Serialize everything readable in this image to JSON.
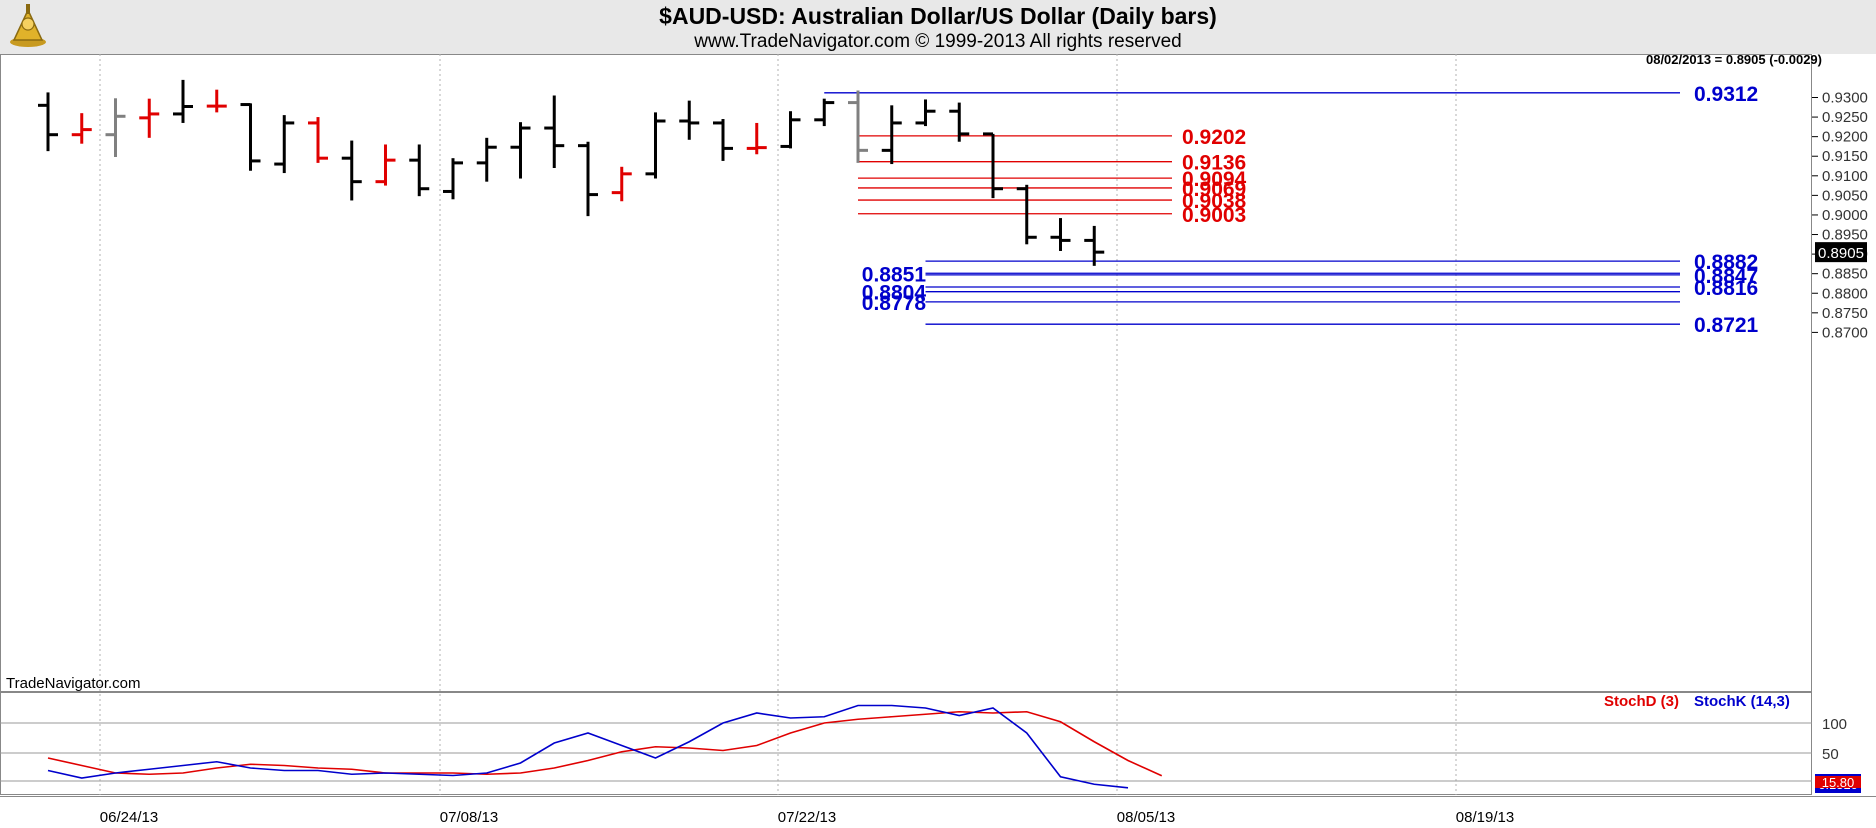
{
  "header": {
    "title": "$AUD-USD:  Australian Dollar/US Dollar  (Daily bars)",
    "copyright": "www.TradeNavigator.com © 1999-2013 All rights reserved"
  },
  "watermark": "TradeNavigator.com",
  "readout": "08/02/2013 = 0.8905 (-0.0029)",
  "last_price_tag": "0.8905",
  "indicator_legend": {
    "stoch_d": "StochD (3)",
    "stoch_k": "StochK (14,3)"
  },
  "indicator_last": {
    "stoch_d": "15.80",
    "stoch_k": "6.1310"
  },
  "colors": {
    "up": "#000000",
    "down": "#e00000",
    "neutral": "#808080",
    "support": "#0000cc",
    "resistance": "#e00000",
    "grid": "#b0b0b0"
  },
  "chart_data": [
    {
      "type": "ohlc",
      "title": "$AUD-USD:  Australian Dollar/US Dollar  (Daily bars)",
      "x_ticks": [
        "06/24/13",
        "07/08/13",
        "07/22/13",
        "08/05/13",
        "08/19/13"
      ],
      "y_ticks": [
        "0.9300",
        "0.9250",
        "0.9200",
        "0.9150",
        "0.9100",
        "0.9050",
        "0.9000",
        "0.8950",
        "0.8900",
        "0.8850",
        "0.8800",
        "0.8750",
        "0.8700"
      ],
      "ylim": [
        0.869,
        0.9335
      ],
      "grid": true,
      "bars": [
        {
          "slot": 0,
          "o": 0.928,
          "h": 0.9313,
          "l": 0.9163,
          "c": 0.9205,
          "color": "up"
        },
        {
          "slot": 1,
          "o": 0.9205,
          "h": 0.926,
          "l": 0.9182,
          "c": 0.9218,
          "color": "down"
        },
        {
          "slot": 2,
          "o": 0.9205,
          "h": 0.9298,
          "l": 0.9148,
          "c": 0.9252,
          "color": "neutral"
        },
        {
          "slot": 3,
          "o": 0.9248,
          "h": 0.9297,
          "l": 0.9197,
          "c": 0.9258,
          "color": "down"
        },
        {
          "slot": 4,
          "o": 0.9258,
          "h": 0.9345,
          "l": 0.9235,
          "c": 0.9277,
          "color": "up"
        },
        {
          "slot": 5,
          "o": 0.9278,
          "h": 0.932,
          "l": 0.9262,
          "c": 0.9278,
          "color": "down"
        },
        {
          "slot": 6,
          "o": 0.9282,
          "h": 0.9285,
          "l": 0.9113,
          "c": 0.9138,
          "color": "up"
        },
        {
          "slot": 7,
          "o": 0.913,
          "h": 0.9255,
          "l": 0.9107,
          "c": 0.9235,
          "color": "up"
        },
        {
          "slot": 8,
          "o": 0.9235,
          "h": 0.925,
          "l": 0.9133,
          "c": 0.9145,
          "color": "down"
        },
        {
          "slot": 9,
          "o": 0.9145,
          "h": 0.919,
          "l": 0.9037,
          "c": 0.9085,
          "color": "up"
        },
        {
          "slot": 10,
          "o": 0.9085,
          "h": 0.918,
          "l": 0.9075,
          "c": 0.914,
          "color": "down"
        },
        {
          "slot": 11,
          "o": 0.914,
          "h": 0.918,
          "l": 0.9048,
          "c": 0.9067,
          "color": "up"
        },
        {
          "slot": 12,
          "o": 0.906,
          "h": 0.9145,
          "l": 0.904,
          "c": 0.9133,
          "color": "up"
        },
        {
          "slot": 13,
          "o": 0.9133,
          "h": 0.9197,
          "l": 0.9085,
          "c": 0.9173,
          "color": "up"
        },
        {
          "slot": 14,
          "o": 0.9173,
          "h": 0.9237,
          "l": 0.9093,
          "c": 0.9222,
          "color": "up"
        },
        {
          "slot": 15,
          "o": 0.9222,
          "h": 0.9305,
          "l": 0.912,
          "c": 0.9177,
          "color": "up"
        },
        {
          "slot": 16,
          "o": 0.9177,
          "h": 0.9187,
          "l": 0.8997,
          "c": 0.9052,
          "color": "up"
        },
        {
          "slot": 17,
          "o": 0.9057,
          "h": 0.9123,
          "l": 0.9035,
          "c": 0.9105,
          "color": "down"
        },
        {
          "slot": 18,
          "o": 0.9105,
          "h": 0.9262,
          "l": 0.9093,
          "c": 0.924,
          "color": "up"
        },
        {
          "slot": 19,
          "o": 0.924,
          "h": 0.9292,
          "l": 0.9192,
          "c": 0.9235,
          "color": "up"
        },
        {
          "slot": 20,
          "o": 0.9235,
          "h": 0.9245,
          "l": 0.9138,
          "c": 0.917,
          "color": "up"
        },
        {
          "slot": 21,
          "o": 0.917,
          "h": 0.9235,
          "l": 0.9155,
          "c": 0.9172,
          "color": "down"
        },
        {
          "slot": 22,
          "o": 0.9175,
          "h": 0.9265,
          "l": 0.917,
          "c": 0.9243,
          "color": "up"
        },
        {
          "slot": 23,
          "o": 0.9243,
          "h": 0.9297,
          "l": 0.9227,
          "c": 0.9287,
          "color": "up"
        },
        {
          "slot": 24,
          "o": 0.9287,
          "h": 0.9318,
          "l": 0.9133,
          "c": 0.9165,
          "color": "neutral"
        },
        {
          "slot": 25,
          "o": 0.9165,
          "h": 0.928,
          "l": 0.913,
          "c": 0.9235,
          "color": "up"
        },
        {
          "slot": 26,
          "o": 0.9235,
          "h": 0.9295,
          "l": 0.9227,
          "c": 0.9265,
          "color": "up"
        },
        {
          "slot": 27,
          "o": 0.9265,
          "h": 0.9287,
          "l": 0.9187,
          "c": 0.9207,
          "color": "up"
        },
        {
          "slot": 28,
          "o": 0.9207,
          "h": 0.9207,
          "l": 0.9043,
          "c": 0.9067,
          "color": "up"
        },
        {
          "slot": 29,
          "o": 0.9067,
          "h": 0.9077,
          "l": 0.8925,
          "c": 0.8943,
          "color": "up"
        },
        {
          "slot": 30,
          "o": 0.8943,
          "h": 0.8992,
          "l": 0.8908,
          "c": 0.8935,
          "color": "up"
        },
        {
          "slot": 31,
          "o": 0.8935,
          "h": 0.8972,
          "l": 0.887,
          "c": 0.8905,
          "color": "up"
        }
      ],
      "levels": [
        {
          "value": 0.9312,
          "label": "0.9312",
          "kind": "support",
          "from": 23,
          "label_side": "right"
        },
        {
          "value": 0.9202,
          "label": "0.9202",
          "kind": "resistance",
          "from": 24,
          "label_side": "mid"
        },
        {
          "value": 0.9136,
          "label": "0.9136",
          "kind": "resistance",
          "from": 24,
          "label_side": "mid"
        },
        {
          "value": 0.9094,
          "label": "0.9094",
          "kind": "resistance",
          "from": 24,
          "label_side": "mid"
        },
        {
          "value": 0.9069,
          "label": "0.9069",
          "kind": "resistance",
          "from": 24,
          "label_side": "mid"
        },
        {
          "value": 0.9038,
          "label": "0.9038",
          "kind": "resistance",
          "from": 24,
          "label_side": "mid"
        },
        {
          "value": 0.9003,
          "label": "0.9003",
          "kind": "resistance",
          "from": 24,
          "label_side": "mid"
        },
        {
          "value": 0.8882,
          "label": "0.8882",
          "kind": "support",
          "from": 26,
          "label_side": "right"
        },
        {
          "value": 0.8851,
          "label": "0.8851",
          "kind": "support",
          "from": 26,
          "label_side": "left"
        },
        {
          "value": 0.8847,
          "label": "0.8847",
          "kind": "support",
          "from": 26,
          "label_side": "right"
        },
        {
          "value": 0.8816,
          "label": "0.8816",
          "kind": "support",
          "from": 26,
          "label_side": "right"
        },
        {
          "value": 0.8804,
          "label": "0.8804",
          "kind": "support",
          "from": 26,
          "label_side": "left"
        },
        {
          "value": 0.8778,
          "label": "0.8778",
          "kind": "support",
          "from": 26,
          "label_side": "left"
        },
        {
          "value": 0.8721,
          "label": "0.8721",
          "kind": "support",
          "from": 26,
          "label_side": "right"
        }
      ]
    },
    {
      "type": "line",
      "ylim": [
        0,
        100
      ],
      "y_ticks": [
        "100",
        "50"
      ],
      "grid": true,
      "series": [
        {
          "name": "StochD (3)",
          "color": "#e00000",
          "values": [
            30,
            24,
            18,
            17,
            18,
            22,
            25,
            24,
            22,
            21,
            18,
            18,
            18,
            17,
            18,
            22,
            28,
            35,
            39,
            38,
            36,
            40,
            50,
            58,
            61,
            63,
            65,
            67,
            66,
            67,
            59,
            43,
            28,
            15.8
          ]
        },
        {
          "name": "StochK (14,3)",
          "color": "#0000cc",
          "values": [
            20,
            14,
            18,
            21,
            24,
            27,
            22,
            20,
            20,
            17,
            18,
            17,
            16,
            18,
            26,
            42,
            50,
            40,
            30,
            43,
            58,
            66,
            62,
            63,
            72,
            72,
            70,
            64,
            70,
            50,
            15,
            9,
            6.131
          ]
        }
      ]
    }
  ]
}
